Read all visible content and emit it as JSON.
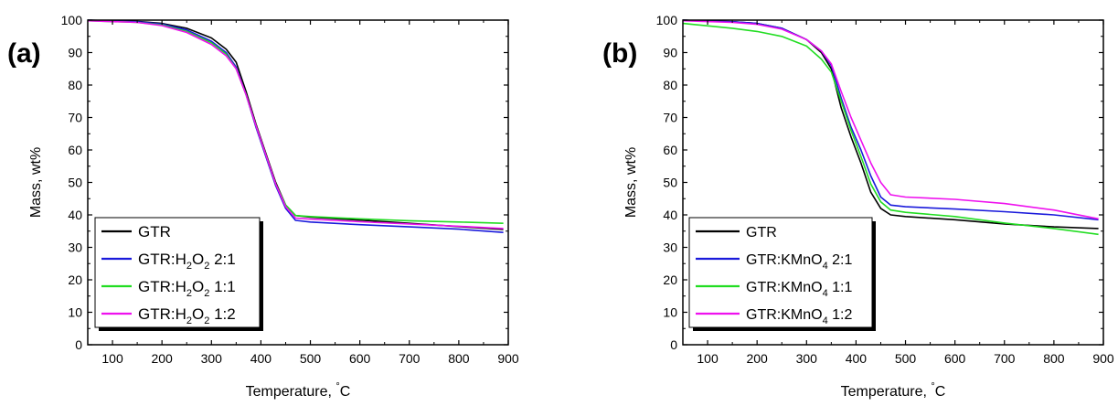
{
  "chart_data": [
    {
      "type": "line",
      "panel_label": "(a)",
      "xlabel": "Temperature, °C",
      "ylabel": "Mass, wt%",
      "xlim": [
        50,
        900
      ],
      "ylim": [
        0,
        100
      ],
      "xticks": [
        100,
        200,
        300,
        400,
        500,
        600,
        700,
        800,
        900
      ],
      "yticks": [
        0,
        10,
        20,
        30,
        40,
        50,
        60,
        70,
        80,
        90,
        100
      ],
      "grid": false,
      "legend_position": "bottom-left",
      "series": [
        {
          "name": "GTR",
          "name_base": "GTR",
          "name_sub": "",
          "name_suffix": "",
          "color": "#000000",
          "x": [
            50,
            150,
            200,
            250,
            300,
            330,
            350,
            370,
            390,
            410,
            430,
            450,
            470,
            500,
            600,
            700,
            800,
            890
          ],
          "y": [
            100,
            99.6,
            99,
            97.5,
            94.5,
            91,
            87,
            78,
            68,
            59,
            50,
            43,
            39.8,
            39.3,
            38.4,
            37.4,
            36.4,
            35.5
          ]
        },
        {
          "name": "GTR:H2O2 2:1",
          "name_base": "GTR:H",
          "name_sub": "2",
          "name_mid": "O",
          "name_sub2": "2",
          "name_suffix": " 2:1",
          "color": "#1a1adb",
          "x": [
            50,
            150,
            200,
            250,
            300,
            330,
            350,
            370,
            390,
            410,
            430,
            450,
            470,
            500,
            600,
            700,
            800,
            890
          ],
          "y": [
            100,
            99.5,
            98.8,
            97,
            93.5,
            90,
            85.5,
            77,
            67,
            58,
            49,
            42,
            38.3,
            37.8,
            37,
            36.3,
            35.6,
            34.6
          ]
        },
        {
          "name": "GTR:H2O2 1:1",
          "name_base": "GTR:H",
          "name_sub": "2",
          "name_mid": "O",
          "name_sub2": "2",
          "name_suffix": " 1:1",
          "color": "#22dd22",
          "x": [
            50,
            150,
            200,
            250,
            300,
            330,
            350,
            370,
            390,
            410,
            430,
            450,
            470,
            500,
            600,
            700,
            800,
            890
          ],
          "y": [
            99.8,
            99.3,
            98.5,
            96.5,
            93,
            89.5,
            85,
            77,
            67.5,
            58.5,
            49.5,
            43,
            39.8,
            39.5,
            38.8,
            38.2,
            37.8,
            37.4
          ]
        },
        {
          "name": "GTR:H2O2 1:2",
          "name_base": "GTR:H",
          "name_sub": "2",
          "name_mid": "O",
          "name_sub2": "2",
          "name_suffix": " 1:2",
          "color": "#ee11ee",
          "x": [
            50,
            150,
            200,
            250,
            300,
            330,
            350,
            370,
            390,
            410,
            430,
            450,
            470,
            500,
            600,
            700,
            800,
            890
          ],
          "y": [
            99.8,
            99.3,
            98.3,
            96.2,
            92.5,
            89,
            85,
            77,
            67.5,
            58.5,
            49.5,
            42.5,
            39,
            38.7,
            37.9,
            37.2,
            36.5,
            35.8
          ]
        }
      ]
    },
    {
      "type": "line",
      "panel_label": "(b)",
      "xlabel": "Temperature, °C",
      "ylabel": "Mass, wt%",
      "xlim": [
        50,
        900
      ],
      "ylim": [
        0,
        100
      ],
      "xticks": [
        100,
        200,
        300,
        400,
        500,
        600,
        700,
        800,
        900
      ],
      "yticks": [
        0,
        10,
        20,
        30,
        40,
        50,
        60,
        70,
        80,
        90,
        100
      ],
      "grid": false,
      "legend_position": "bottom-left",
      "series": [
        {
          "name": "GTR",
          "name_base": "GTR",
          "name_sub": "",
          "name_suffix": "",
          "color": "#000000",
          "x": [
            50,
            150,
            200,
            250,
            300,
            330,
            350,
            370,
            390,
            410,
            430,
            450,
            470,
            500,
            600,
            700,
            800,
            890
          ],
          "y": [
            100,
            99.5,
            99,
            97.5,
            94,
            90,
            85,
            73,
            64,
            56,
            47,
            42,
            40,
            39.5,
            38.5,
            37.2,
            36.3,
            35.8
          ]
        },
        {
          "name": "GTR:KMnO4 2:1",
          "name_base": "GTR:KMnO",
          "name_sub": "4",
          "name_suffix": " 2:1",
          "color": "#1a1adb",
          "x": [
            50,
            150,
            200,
            250,
            300,
            330,
            350,
            370,
            390,
            410,
            430,
            450,
            470,
            500,
            600,
            700,
            800,
            890
          ],
          "y": [
            100,
            99.5,
            99,
            97.5,
            94,
            90.5,
            86,
            76,
            67,
            60,
            52,
            45.5,
            43,
            42.5,
            41.8,
            41,
            40,
            38.5
          ]
        },
        {
          "name": "GTR:KMnO4 1:1",
          "name_base": "GTR:KMnO",
          "name_sub": "4",
          "name_suffix": " 1:1",
          "color": "#22dd22",
          "x": [
            50,
            150,
            200,
            250,
            300,
            330,
            350,
            370,
            390,
            410,
            430,
            450,
            470,
            500,
            600,
            700,
            800,
            890
          ],
          "y": [
            99,
            97.5,
            96.5,
            95,
            92,
            88,
            84,
            75,
            66,
            58,
            49.5,
            44,
            41.5,
            40.8,
            39.5,
            37.5,
            35.8,
            34
          ]
        },
        {
          "name": "GTR:KMnO4 1:2",
          "name_base": "GTR:KMnO",
          "name_sub": "4",
          "name_suffix": " 1:2",
          "color": "#ee11ee",
          "x": [
            50,
            150,
            200,
            250,
            300,
            330,
            350,
            370,
            390,
            410,
            430,
            450,
            470,
            500,
            600,
            700,
            800,
            890
          ],
          "y": [
            99.8,
            99.3,
            98.7,
            97.2,
            94,
            90.5,
            86.5,
            78,
            70,
            63,
            56,
            50,
            46.2,
            45.5,
            44.8,
            43.5,
            41.5,
            38.8
          ]
        }
      ]
    }
  ]
}
